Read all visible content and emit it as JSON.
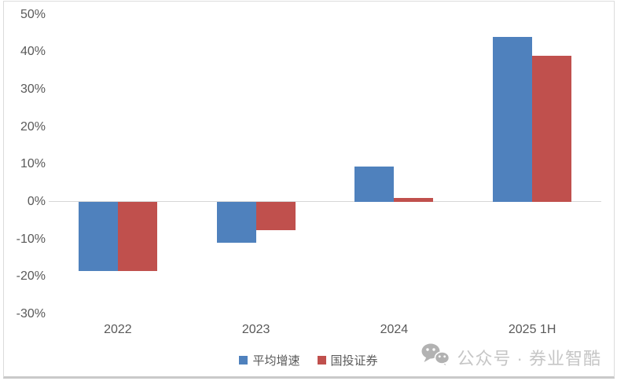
{
  "chart_data": {
    "type": "bar",
    "categories": [
      "2022",
      "2023",
      "2024",
      "2025 1H"
    ],
    "series": [
      {
        "name": "平均增速",
        "color": "#4F81BD",
        "values": [
          -18.5,
          -11,
          9.5,
          44
        ]
      },
      {
        "name": "国投证券",
        "color": "#C0504D",
        "values": [
          -18.5,
          -7.5,
          1,
          39
        ]
      }
    ],
    "title": "",
    "xlabel": "",
    "ylabel": "",
    "ylim": [
      -30,
      50
    ],
    "ytick_step": 10,
    "ytick_suffix": "%",
    "grid": "zero-line-only",
    "legend_position": "bottom-center",
    "tick_color": "#595959",
    "zero_line_color": "#d6d6d6"
  },
  "watermark": {
    "icon": "wechat-icon",
    "text": "公众号 · 券业智酷"
  }
}
